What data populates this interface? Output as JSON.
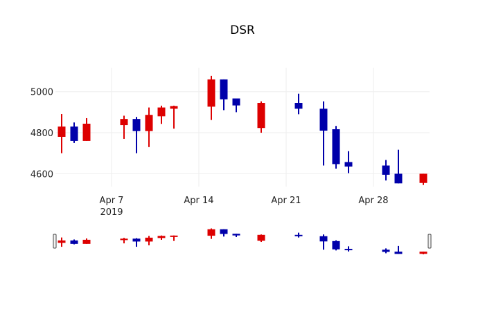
{
  "chart_data": {
    "type": "candlestick",
    "title": "DSR",
    "xlabel": "",
    "ylabel": "",
    "grid": true,
    "legend": false,
    "colors": {
      "increasing": "#dd0000",
      "decreasing": "#0000aa"
    },
    "x_range": [
      "2019-04-02 12:00",
      "2019-05-02 12:00"
    ],
    "ylim": [
      4520,
      5110
    ],
    "y_ticks": [
      4600,
      4800,
      5000
    ],
    "y_tick_labels": [
      "4600",
      "4800",
      "5000"
    ],
    "x_ticks": [
      {
        "date": "2019-04-07",
        "label": "Apr 7",
        "sublabel": "2019"
      },
      {
        "date": "2019-04-14",
        "label": "Apr 14",
        "sublabel": ""
      },
      {
        "date": "2019-04-21",
        "label": "Apr 21",
        "sublabel": ""
      },
      {
        "date": "2019-04-28",
        "label": "Apr 28",
        "sublabel": ""
      }
    ],
    "x": [
      "2019-04-03",
      "2019-04-04",
      "2019-04-05",
      "2019-04-08",
      "2019-04-09",
      "2019-04-10",
      "2019-04-11",
      "2019-04-12",
      "2019-04-15",
      "2019-04-16",
      "2019-04-17",
      "2019-04-19",
      "2019-04-22",
      "2019-04-24",
      "2019-04-25",
      "2019-04-26",
      "2019-04-29",
      "2019-04-30",
      "2019-05-02"
    ],
    "open": [
      4780,
      4830,
      4760,
      4837,
      4867,
      4808,
      4880,
      4917,
      4927,
      5060,
      4967,
      4823,
      4945,
      4917,
      4817,
      4657,
      4640,
      4600,
      4555
    ],
    "high": [
      4891,
      4850,
      4871,
      4883,
      4877,
      4923,
      4932,
      4932,
      5077,
      5060,
      4967,
      4953,
      4990,
      4953,
      4833,
      4710,
      4667,
      4717,
      4600
    ],
    "low": [
      4700,
      4750,
      4760,
      4770,
      4700,
      4730,
      4843,
      4820,
      4862,
      4910,
      4900,
      4800,
      4890,
      4640,
      4625,
      4603,
      4567,
      4553,
      4545
    ],
    "close": [
      4830,
      4760,
      4844,
      4867,
      4808,
      4887,
      4923,
      4930,
      5060,
      4963,
      4933,
      4945,
      4917,
      4810,
      4647,
      4635,
      4595,
      4553,
      4600
    ],
    "rangeslider": {
      "visible": true,
      "range": [
        "2019-04-02 12:00",
        "2019-05-02 12:00"
      ]
    }
  }
}
